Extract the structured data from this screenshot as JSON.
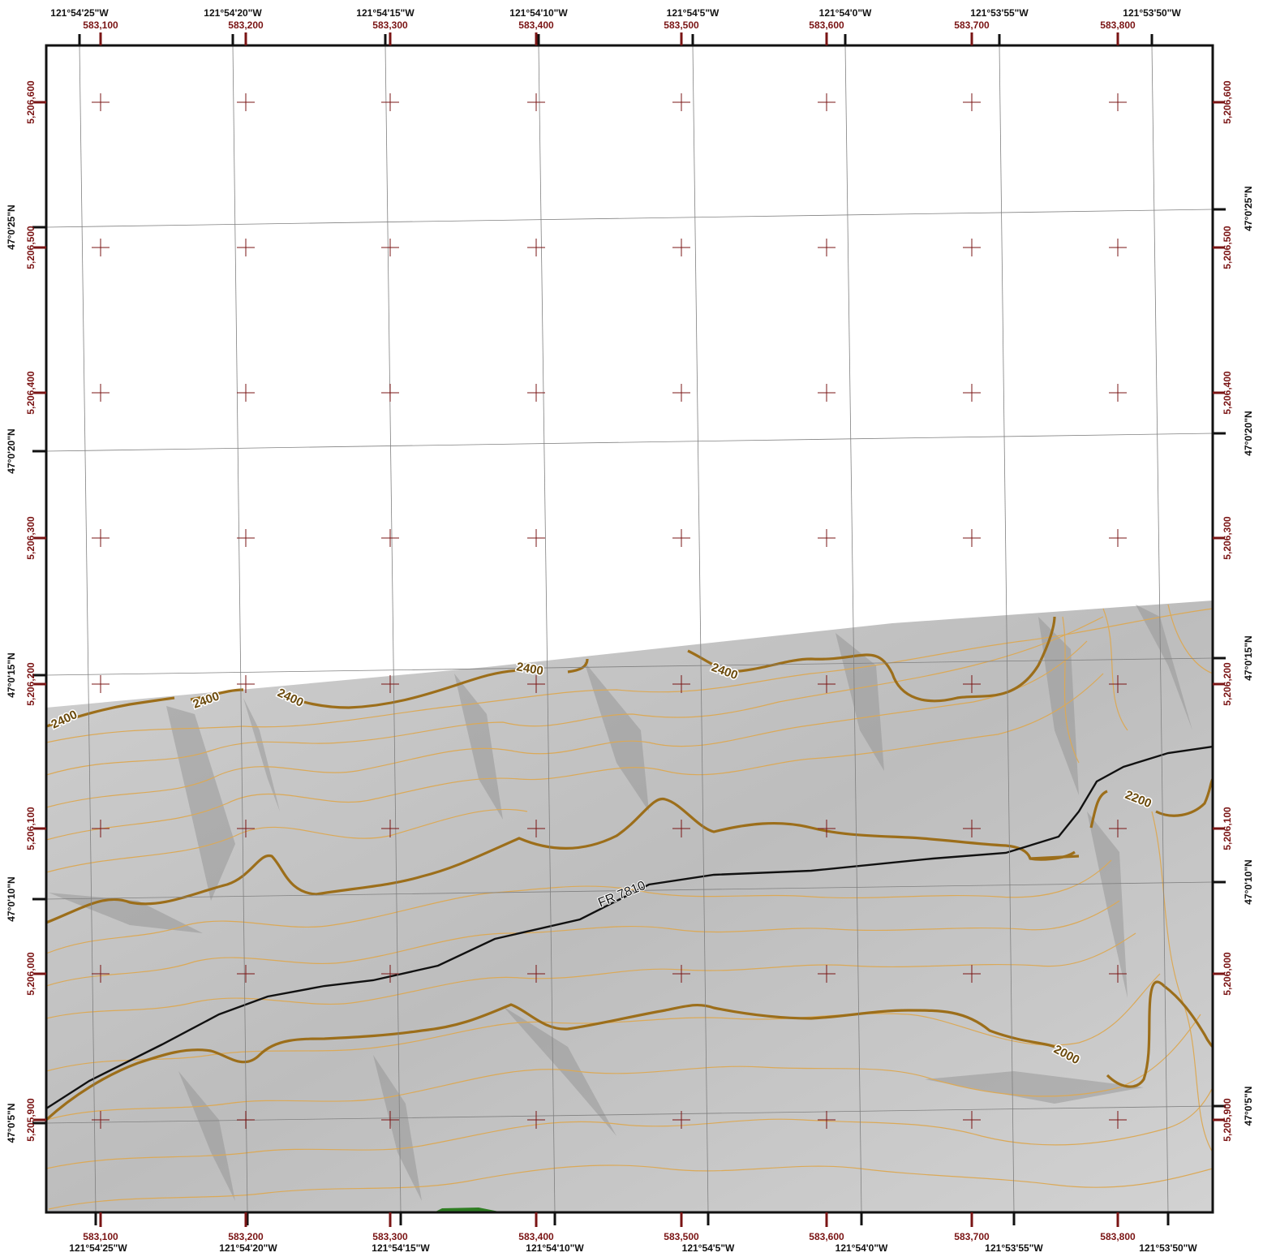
{
  "map": {
    "colors": {
      "frame": "#111111",
      "graticule": "#808080",
      "utm_ticks": "#7a1414",
      "hillshade": "#c8c8c8",
      "hillshade_dark": "#8e8e8e",
      "contour_index": "#9c6e1a",
      "contour_intermediate": "#dba957",
      "road": "#111111",
      "vegetation": "#2e7d22"
    },
    "top_geographic_labels": [
      "121°54'25\"W",
      "121°54'20\"W",
      "121°54'15\"W",
      "121°54'10\"W",
      "121°54'5\"W",
      "121°54'0\"W",
      "121°53'55\"W",
      "121°53'50\"W"
    ],
    "bottom_geographic_labels": [
      "121°54'25\"W",
      "121°54'20\"W",
      "121°54'15\"W",
      "121°54'10\"W",
      "121°54'5\"W",
      "121°54'0\"W",
      "121°53'55\"W",
      "121°53'50\"W"
    ],
    "utm_easting_labels": [
      "583,100",
      "583,200",
      "583,300",
      "583,400",
      "583,500",
      "583,600",
      "583,700",
      "583,800"
    ],
    "utm_northing_labels": [
      "5,206,600",
      "5,206,500",
      "5,206,400",
      "5,206,300",
      "5,206,200",
      "5,206,100",
      "5,206,000",
      "5,205,900"
    ],
    "latitude_labels": [
      "47°0'25\"N",
      "47°0'20\"N",
      "47°0'15\"N",
      "47°0'10\"N",
      "47°0'5\"N"
    ],
    "contour_labels": [
      "2400",
      "2400",
      "2400",
      "2400",
      "2400",
      "2200",
      "2000"
    ],
    "road_label": "FR 7810"
  }
}
